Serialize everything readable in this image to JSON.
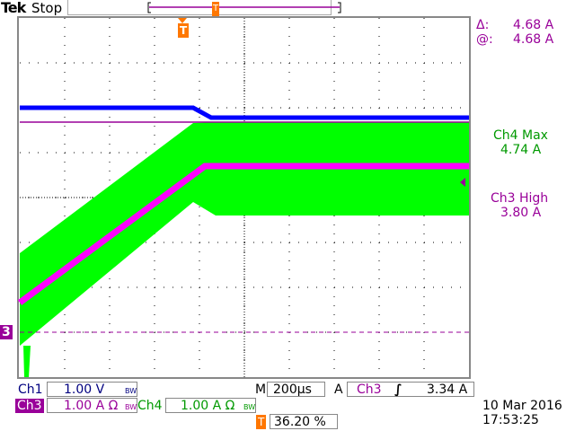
{
  "header": {
    "brand": "Tek",
    "status": "Stop"
  },
  "cursor_readout": {
    "delta_label": "Δ:",
    "delta_value": "4.68 A",
    "at_label": "@:",
    "at_value": "4.68 A"
  },
  "measurements": [
    {
      "label": "Ch4 Max",
      "value": "4.74 A",
      "color": "#009900"
    },
    {
      "label": "Ch3 High",
      "value": "3.80 A",
      "color": "#990099"
    }
  ],
  "channels": {
    "ch1": {
      "label": "Ch1",
      "scale": "1.00 V",
      "bw": "BW",
      "color": "#000080"
    },
    "ch3": {
      "label": "Ch3",
      "scale": "1.00 A Ω",
      "bw": "BW",
      "color": "#990099"
    },
    "ch4": {
      "label": "Ch4",
      "scale": "1.00 A Ω",
      "bw": "BW",
      "color": "#009900"
    }
  },
  "timebase": {
    "label": "M",
    "value": "200µs"
  },
  "trigger": {
    "label": "A",
    "source": "Ch3",
    "slope_icon": "rising-edge-icon",
    "level": "3.34 A",
    "position_icon": "T",
    "position": "36.20 %"
  },
  "ground_marker": "3",
  "datetime": {
    "date": "10 Mar  2016",
    "time": "17:53:25"
  },
  "chart_data": {
    "type": "line",
    "xlabel": "",
    "ylabel": "",
    "x_units": "µs",
    "xlim": [
      0,
      2000
    ],
    "ylim_div": [
      0,
      8
    ],
    "grid": true,
    "cursor_level": 4.68,
    "series": [
      {
        "channel": "Ch1",
        "color": "#0000ff",
        "units": "V",
        "x": [
          0,
          772,
          852,
          2000
        ],
        "y": [
          5.0,
          5.0,
          4.78,
          4.78
        ]
      },
      {
        "channel": "Ch3",
        "color": "#ff00ff",
        "units": "A",
        "x": [
          0,
          824,
          2000
        ],
        "y": [
          0.66,
          3.7,
          3.7
        ]
      },
      {
        "channel": "Ch4",
        "color": "#00ff00",
        "units": "A",
        "envelope": true,
        "x": [
          0,
          772,
          872,
          2000
        ],
        "y_max": [
          1.76,
          4.66,
          4.68,
          4.68
        ],
        "y_min": [
          -0.3,
          2.9,
          2.6,
          2.6
        ]
      }
    ]
  }
}
